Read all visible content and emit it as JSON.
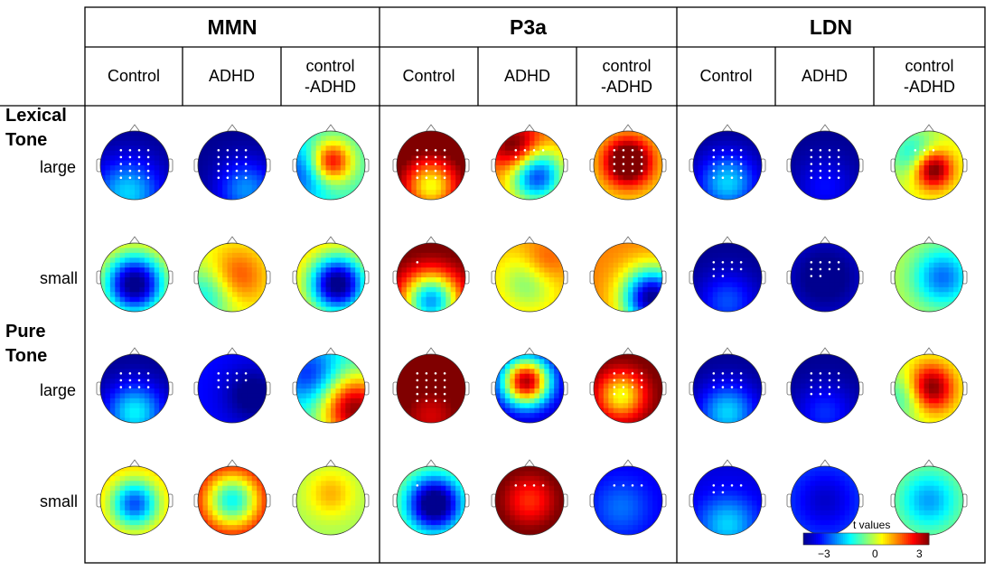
{
  "components": [
    "MMN",
    "P3a",
    "LDN"
  ],
  "conditions": [
    "Control",
    "ADHD",
    "control\n-ADHD"
  ],
  "condition_labels": [
    "Control",
    "ADHD",
    "control",
    "-ADHD"
  ],
  "groups": {
    "lexical": [
      "Lexical",
      "Tone"
    ],
    "pure": [
      "Pure",
      "Tone"
    ]
  },
  "rows": [
    "large",
    "small",
    "large",
    "small"
  ],
  "colorbar": {
    "title": "t values",
    "ticks": [
      "−3",
      "0",
      "3"
    ],
    "min": -3,
    "max": 3
  },
  "colormap": [
    "#00008f",
    "#0000ff",
    "#0080ff",
    "#00ffff",
    "#80ff80",
    "#ffff00",
    "#ff8000",
    "#ff0000",
    "#800000"
  ],
  "maps": [
    [
      {
        "base": -3,
        "blobs": [
          [
            0.4,
            0.9,
            2.0,
            0.35
          ]
        ],
        "dots": 20
      },
      {
        "base": -3,
        "blobs": [
          [
            0.7,
            0.85,
            1.6,
            0.3
          ]
        ],
        "dots": 20
      },
      {
        "base": -0.4,
        "blobs": [
          [
            0.5,
            0.45,
            3,
            0.22
          ],
          [
            0.1,
            0.6,
            -1.5,
            0.3
          ]
        ],
        "dots": 0
      }
    ],
    [
      {
        "base": 1.3,
        "blobs": [
          [
            0.5,
            0.6,
            -4.5,
            0.32
          ]
        ],
        "dots": 0
      },
      {
        "base": 0.6,
        "blobs": [
          [
            0.55,
            0.5,
            1.4,
            0.3
          ],
          [
            0.15,
            0.75,
            -1.5,
            0.3
          ]
        ],
        "dots": 0
      },
      {
        "base": 1.3,
        "blobs": [
          [
            0.6,
            0.6,
            -4.5,
            0.3
          ]
        ],
        "dots": 0
      }
    ],
    [
      {
        "base": -3,
        "blobs": [
          [
            0.5,
            0.85,
            2.2,
            0.3
          ]
        ],
        "dots": 12
      },
      {
        "base": -2.2,
        "blobs": [
          [
            0.8,
            0.6,
            -1,
            0.3
          ]
        ],
        "dots": 10
      },
      {
        "base": -0.6,
        "blobs": [
          [
            0.85,
            0.8,
            3.5,
            0.35
          ],
          [
            0.2,
            0.3,
            -1.5,
            0.3
          ]
        ],
        "dots": 0
      }
    ],
    [
      {
        "base": 1.2,
        "blobs": [
          [
            0.5,
            0.55,
            -3.0,
            0.25
          ]
        ],
        "dots": 0
      },
      {
        "base": 2.8,
        "blobs": [
          [
            0.5,
            0.5,
            -3.5,
            0.3
          ]
        ],
        "dots": 0
      },
      {
        "base": 0.2,
        "blobs": [
          [
            0.5,
            0.4,
            1,
            0.25
          ]
        ],
        "dots": 0
      }
    ],
    [
      {
        "base": 3.5,
        "blobs": [
          [
            0.5,
            0.8,
            -2.8,
            0.28
          ]
        ],
        "dots": 20
      },
      {
        "base": 1.5,
        "blobs": [
          [
            0.6,
            0.65,
            -3.5,
            0.28
          ],
          [
            0.3,
            0.25,
            2,
            0.25
          ]
        ],
        "dots": 5
      },
      {
        "base": 0.8,
        "blobs": [
          [
            0.5,
            0.45,
            3.2,
            0.25
          ]
        ],
        "dots": 16
      }
    ],
    [
      {
        "base": 3.2,
        "blobs": [
          [
            0.5,
            0.85,
            -4.5,
            0.3
          ]
        ],
        "dots": 1
      },
      {
        "base": 1.2,
        "blobs": [
          [
            0.5,
            0.55,
            -1.4,
            0.3
          ],
          [
            0.7,
            0.3,
            1,
            0.25
          ]
        ],
        "dots": 0
      },
      {
        "base": 1.5,
        "blobs": [
          [
            0.85,
            0.8,
            -4.5,
            0.3
          ]
        ],
        "dots": 0
      }
    ],
    [
      {
        "base": 3.5,
        "blobs": [
          [
            0.5,
            0.9,
            -1,
            0.3
          ]
        ],
        "dots": 20
      },
      {
        "base": -2.8,
        "blobs": [
          [
            0.45,
            0.4,
            5.5,
            0.25
          ]
        ],
        "dots": 0
      },
      {
        "base": 3.2,
        "blobs": [
          [
            0.4,
            0.6,
            -2.5,
            0.25
          ]
        ],
        "dots": 14
      }
    ],
    [
      {
        "base": 0.5,
        "blobs": [
          [
            0.55,
            0.55,
            -4,
            0.3
          ]
        ],
        "dots": 1
      },
      {
        "base": 3.5,
        "blobs": [
          [
            0.5,
            0.5,
            -1.5,
            0.3
          ]
        ],
        "dots": 4
      },
      {
        "base": -2.4,
        "blobs": [
          [
            0.4,
            0.6,
            0.8,
            0.3
          ]
        ],
        "dots": 4
      }
    ],
    [
      {
        "base": -3,
        "blobs": [
          [
            0.5,
            0.75,
            2,
            0.3
          ]
        ],
        "dots": 20
      },
      {
        "base": -3,
        "blobs": [
          [
            0.5,
            0.8,
            0.8,
            0.3
          ]
        ],
        "dots": 20
      },
      {
        "base": 0.6,
        "blobs": [
          [
            0.55,
            0.55,
            3,
            0.2
          ],
          [
            0.3,
            0.35,
            -1.5,
            0.25
          ]
        ],
        "dots": 3
      }
    ],
    [
      {
        "base": -3,
        "blobs": [
          [
            0.5,
            0.85,
            1.2,
            0.3
          ]
        ],
        "dots": 10
      },
      {
        "base": -2.5,
        "blobs": [
          [
            0.5,
            0.5,
            -0.8,
            0.3
          ]
        ],
        "dots": 10
      },
      {
        "base": 0.4,
        "blobs": [
          [
            0.7,
            0.5,
            -2,
            0.3
          ]
        ],
        "dots": 0
      }
    ],
    [
      {
        "base": -3,
        "blobs": [
          [
            0.5,
            0.85,
            2,
            0.3
          ]
        ],
        "dots": 12
      },
      {
        "base": -3,
        "blobs": [
          [
            0.5,
            0.85,
            1,
            0.3
          ]
        ],
        "dots": 15
      },
      {
        "base": 0.5,
        "blobs": [
          [
            0.5,
            0.5,
            3,
            0.25
          ],
          [
            0.2,
            0.6,
            -1.5,
            0.25
          ]
        ],
        "dots": 0
      }
    ],
    [
      {
        "base": -2.5,
        "blobs": [
          [
            0.5,
            0.85,
            1.5,
            0.3
          ]
        ],
        "dots": 6
      },
      {
        "base": -1.8,
        "blobs": [
          [
            0.5,
            0.5,
            -0.8,
            0.3
          ]
        ],
        "dots": 0
      },
      {
        "base": 0.2,
        "blobs": [
          [
            0.5,
            0.5,
            -1.5,
            0.3
          ]
        ],
        "dots": 0
      }
    ]
  ]
}
